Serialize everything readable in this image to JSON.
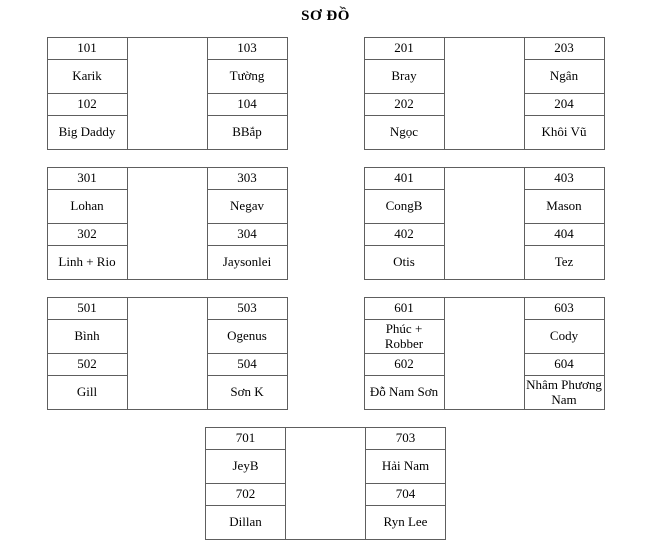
{
  "title": "SƠ ĐỒ",
  "blocks": [
    {
      "id": "100",
      "n1": "101",
      "name1": "Karik",
      "n2": "102",
      "name2": "Big Daddy",
      "n3": "103",
      "name3": "Tường",
      "n4": "104",
      "name4": "BBắp"
    },
    {
      "id": "200",
      "n1": "201",
      "name1": "Bray",
      "n2": "202",
      "name2": "Ngọc",
      "n3": "203",
      "name3": "Ngân",
      "n4": "204",
      "name4": "Khôi Vũ"
    },
    {
      "id": "300",
      "n1": "301",
      "name1": "Lohan",
      "n2": "302",
      "name2": "Linh + Rio",
      "n3": "303",
      "name3": "Negav",
      "n4": "304",
      "name4": "Jaysonlei"
    },
    {
      "id": "400",
      "n1": "401",
      "name1": "CongB",
      "n2": "402",
      "name2": "Otis",
      "n3": "403",
      "name3": "Mason",
      "n4": "404",
      "name4": "Tez"
    },
    {
      "id": "500",
      "n1": "501",
      "name1": "Bình",
      "n2": "502",
      "name2": "Gill",
      "n3": "503",
      "name3": "Ogenus",
      "n4": "504",
      "name4": "Sơn K"
    },
    {
      "id": "600",
      "n1": "601",
      "name1": "Phúc + Robber",
      "n2": "602",
      "name2": "Đỗ Nam Sơn",
      "n3": "603",
      "name3": "Cody",
      "n4": "604",
      "name4": "Nhâm Phương Nam"
    },
    {
      "id": "700",
      "n1": "701",
      "name1": "JeyB",
      "n2": "702",
      "name2": "Dillan",
      "n3": "703",
      "name3": "Hải Nam",
      "n4": "704",
      "name4": "Ryn Lee"
    }
  ]
}
